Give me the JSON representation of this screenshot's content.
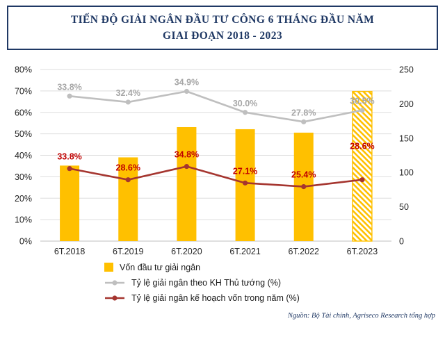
{
  "title": {
    "line1": "TIẾN ĐỘ GIẢI NGÂN ĐẦU TƯ CÔNG 6 THÁNG ĐẦU NĂM",
    "line2": "GIAI ĐOẠN 2018 - 2023"
  },
  "source": "Nguồn: Bộ Tài chính, Agriseco Research tổng hợp",
  "colors": {
    "navy": "#1F3864",
    "bar": "#FFC000",
    "gray_line": "#BFBFBF",
    "gray_label": "#A6A6A6",
    "red_line": "#A5352F",
    "red_label": "#C00000",
    "grid": "#DDDDDD"
  },
  "chart_data": {
    "type": "combo",
    "categories": [
      "6T.2018",
      "6T.2019",
      "6T.2020",
      "6T.2021",
      "6T.2022",
      "6T.2023"
    ],
    "series": [
      {
        "name": "Vốn đầu tư giải ngân",
        "type": "bar",
        "axis": "right",
        "values": [
          110,
          122,
          166,
          163,
          158,
          218
        ],
        "last_bar_hatched": true
      },
      {
        "name": "Tỷ lệ giải ngân theo KH Thủ tướng (%)",
        "type": "line",
        "axis": "left",
        "display_multiplier": 2,
        "values": [
          33.8,
          32.4,
          34.9,
          30.0,
          27.8,
          30.5
        ],
        "labels": [
          "33.8%",
          "32.4%",
          "34.9%",
          "30.0%",
          "27.8%",
          "30.5%"
        ]
      },
      {
        "name": "Tỷ lệ giải ngân kế hoạch vốn trong năm (%)",
        "type": "line",
        "axis": "left",
        "display_multiplier": 1,
        "values": [
          33.8,
          28.6,
          34.8,
          27.1,
          25.4,
          28.6
        ],
        "labels": [
          "33.8%",
          "28.6%",
          "34.8%",
          "27.1%",
          "25.4%",
          "28.6%"
        ]
      }
    ],
    "left_axis": {
      "min": 0,
      "max": 80,
      "ticks": [
        "0%",
        "10%",
        "20%",
        "30%",
        "40%",
        "50%",
        "60%",
        "70%",
        "80%"
      ]
    },
    "right_axis": {
      "min": 0,
      "max": 250,
      "ticks": [
        "0",
        "50",
        "100",
        "150",
        "200",
        "250"
      ]
    },
    "grid": true,
    "legend_position": "bottom-left"
  }
}
